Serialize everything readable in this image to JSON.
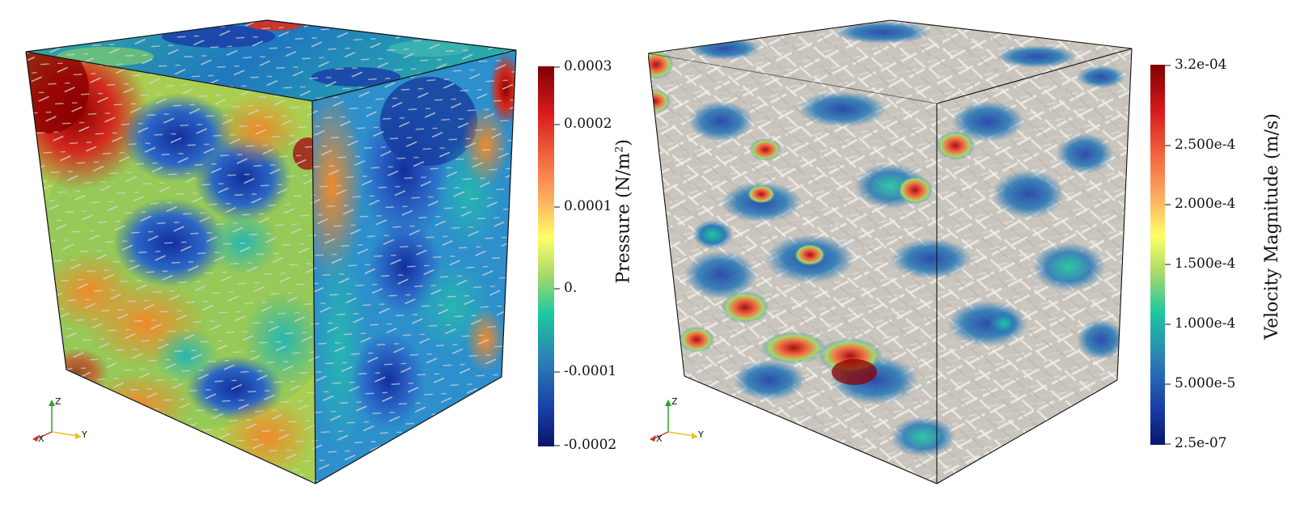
{
  "panels": [
    {
      "name": "pressure-cube",
      "colorbar": {
        "title_text": "Pressure (N/m",
        "title_sup": "2",
        "title_close": ")",
        "ticks": [
          "0.0003",
          "0.0002",
          "0.0001",
          "0.",
          "-0.0001",
          "-0.0002"
        ],
        "colors": [
          "#7f0000",
          "#d7191c",
          "#f46d43",
          "#fdae61",
          "#ffff66",
          "#a6d96a",
          "#1ec8a0",
          "#2c7bb6",
          "#1a3fa8",
          "#08156b"
        ]
      },
      "orientation_axes": {
        "x": "X",
        "y": "Y",
        "z": "Z"
      }
    },
    {
      "name": "velocity-cube",
      "colorbar": {
        "title_text": "Velocity Magnitude (m/s)",
        "ticks": [
          "3.2e-04",
          "2.500e-4",
          "2.000e-4",
          "1.500e-4",
          "1.000e-4",
          "5.000e-5",
          "2.5e-07"
        ],
        "colors": [
          "#7f0000",
          "#d7191c",
          "#f46d43",
          "#fdae61",
          "#ffff66",
          "#a6d96a",
          "#1ec8a0",
          "#2c7bb6",
          "#1a3fa8",
          "#08156b"
        ]
      },
      "orientation_axes": {
        "x": "X",
        "y": "Y",
        "z": "Z"
      }
    }
  ]
}
